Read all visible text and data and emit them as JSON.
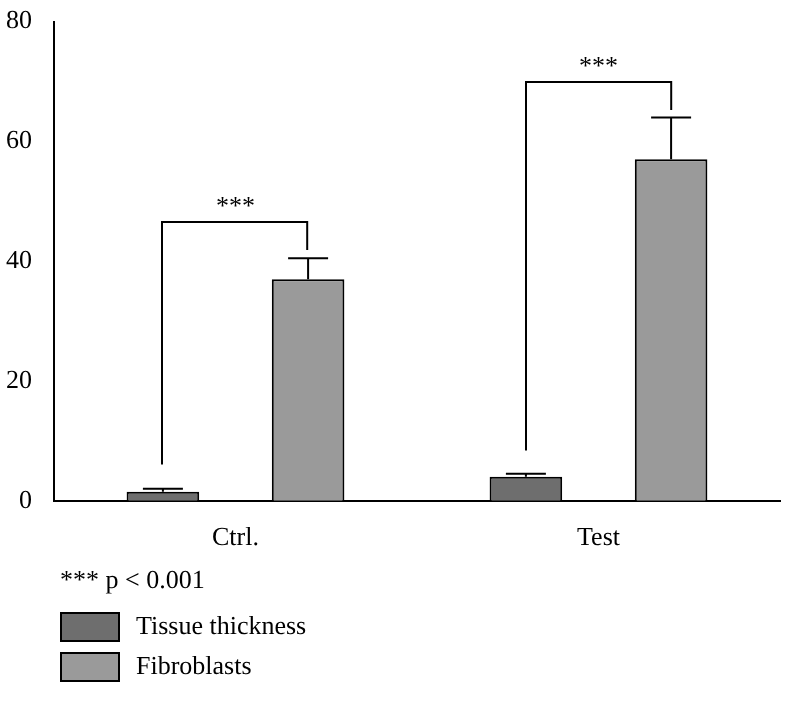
{
  "chart_data": {
    "type": "bar",
    "categories": [
      "Ctrl.",
      "Test"
    ],
    "series": [
      {
        "name": "Tissue thickness",
        "color": "#6e6e6e",
        "values": [
          1.5,
          4
        ],
        "errors": [
          [
            1.5,
            2
          ],
          [
            4,
            4.5
          ]
        ]
      },
      {
        "name": "Fibroblasts",
        "color": "#9a9a9a",
        "values": [
          37,
          57
        ],
        "errors": [
          [
            37,
            40.5
          ],
          [
            57,
            64
          ]
        ]
      }
    ],
    "ylim": [
      0,
      80
    ],
    "yticks": [
      0,
      20,
      40,
      60,
      80
    ],
    "grid": false,
    "legend": "bottom left",
    "annotations": [
      "***",
      "***",
      "*** p < 0.001"
    ]
  }
}
